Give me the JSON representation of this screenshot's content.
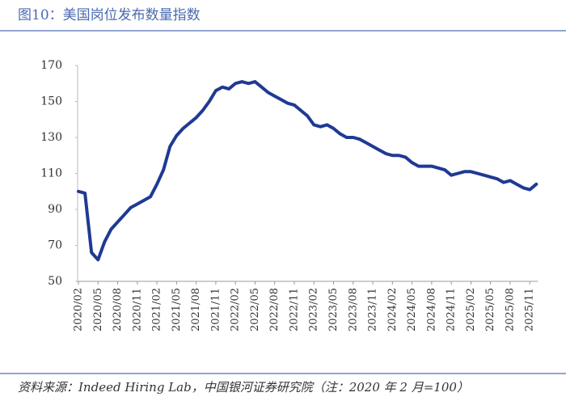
{
  "chart_data": {
    "type": "line",
    "title": "图10：美国岗位发布数量指数",
    "source": "资料来源：Indeed Hiring Lab，中国银河证券研究院（注：2020 年 2 月=100）",
    "categories": [
      "2020/02",
      null,
      null,
      "2020/05",
      null,
      null,
      "2020/08",
      null,
      null,
      "2020/11",
      null,
      null,
      "2021/02",
      null,
      null,
      "2021/05",
      null,
      null,
      "2021/08",
      null,
      null,
      "2021/11",
      null,
      null,
      "2022/02",
      null,
      null,
      "2022/05",
      null,
      null,
      "2022/08",
      null,
      null,
      "2022/11",
      null,
      null,
      "2023/02",
      null,
      null,
      "2023/05",
      null,
      null,
      "2023/08",
      null,
      null,
      "2023/11",
      null,
      null,
      "2024/02",
      null,
      null,
      "2024/05",
      null,
      null,
      "2024/08",
      null,
      null,
      "2024/11",
      null,
      null,
      "2025/02",
      null,
      null,
      "2025/05",
      null,
      null,
      "2025/08",
      null,
      null,
      "2025/11",
      null
    ],
    "series": [
      {
        "color": "#1f3a93",
        "values": [
          100,
          99,
          66,
          62,
          72,
          79,
          83,
          87,
          91,
          93,
          95,
          97,
          104,
          112,
          125,
          131,
          135,
          138,
          141,
          145,
          150,
          156,
          158,
          157,
          160,
          161,
          160,
          161,
          158,
          155,
          153,
          151,
          149,
          148,
          145,
          142,
          137,
          136,
          137,
          135,
          132,
          130,
          130,
          129,
          127,
          125,
          123,
          121,
          120,
          120,
          119,
          116,
          114,
          114,
          114,
          113,
          112,
          109,
          110,
          111,
          111,
          110,
          109,
          108,
          107,
          105,
          106,
          104,
          102,
          101,
          104
        ]
      }
    ],
    "ylim": [
      50,
      170
    ],
    "yticks": [
      50,
      70,
      90,
      110,
      130,
      150,
      170
    ]
  }
}
